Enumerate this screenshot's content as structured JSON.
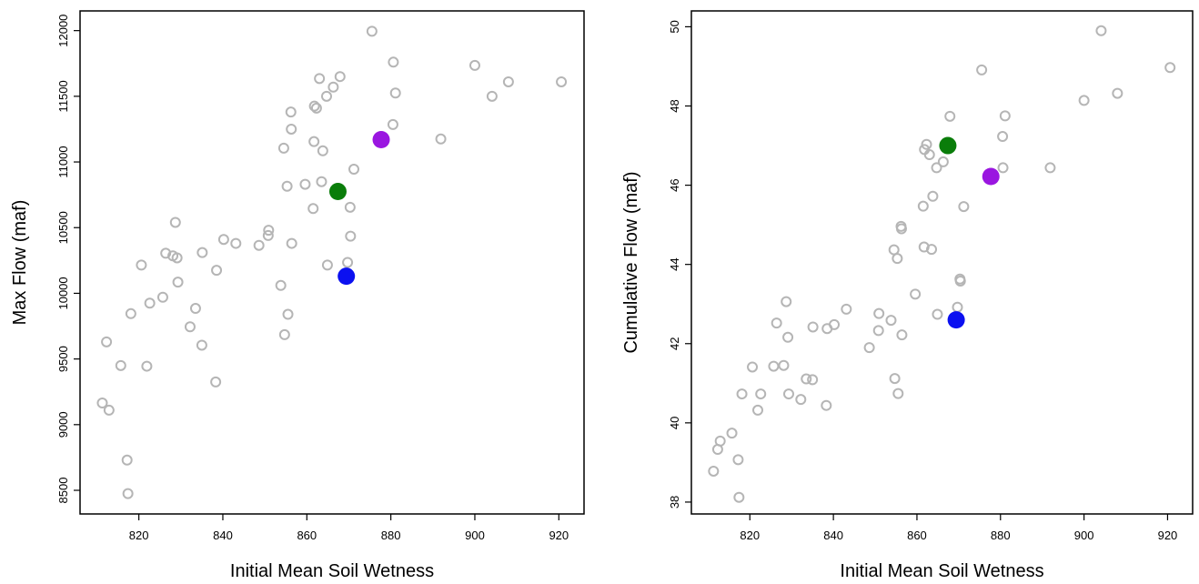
{
  "chart_data": [
    {
      "type": "scatter",
      "xlabel": "Initial Mean Soil Wetness",
      "ylabel": "Max Flow (maf)",
      "xlim": [
        806,
        926
      ],
      "ylim": [
        8320,
        12150
      ],
      "xticks": [
        820,
        840,
        860,
        880,
        900,
        920
      ],
      "yticks": [
        8500,
        9000,
        9500,
        10000,
        10500,
        11000,
        11500,
        12000
      ],
      "x_tick_labels": [
        "820",
        "840",
        "860",
        "880",
        "900",
        "920"
      ],
      "y_tick_labels": [
        "8500",
        "9000",
        "9500",
        "10000",
        "10500",
        "11000",
        "11500",
        "12000"
      ],
      "grid": false,
      "colors": {
        "open": "#b5b5b5",
        "green": "#0a7d0a",
        "purple": "#9a16e0",
        "blue": "#0b10f0"
      },
      "points": [
        [
          811.3,
          9165
        ],
        [
          812.3,
          9630
        ],
        [
          812.9,
          9110
        ],
        [
          815.7,
          9450
        ],
        [
          817.2,
          8730
        ],
        [
          817.4,
          8475
        ],
        [
          818.1,
          9845
        ],
        [
          820.6,
          10215
        ],
        [
          821.9,
          9445
        ],
        [
          822.6,
          9925
        ],
        [
          825.7,
          9970
        ],
        [
          826.4,
          10305
        ],
        [
          828.1,
          10285
        ],
        [
          828.7,
          10540
        ],
        [
          829.1,
          10270
        ],
        [
          829.3,
          10085
        ],
        [
          832.2,
          9745
        ],
        [
          833.5,
          9885
        ],
        [
          835.0,
          9605
        ],
        [
          835.1,
          10310
        ],
        [
          838.3,
          9325
        ],
        [
          838.5,
          10175
        ],
        [
          840.2,
          10410
        ],
        [
          843.1,
          10380
        ],
        [
          848.6,
          10365
        ],
        [
          850.8,
          10440
        ],
        [
          850.9,
          10480
        ],
        [
          853.8,
          10060
        ],
        [
          854.5,
          11105
        ],
        [
          854.7,
          9685
        ],
        [
          855.3,
          10815
        ],
        [
          855.5,
          9840
        ],
        [
          856.2,
          11380
        ],
        [
          856.3,
          11250
        ],
        [
          856.4,
          10380
        ],
        [
          859.6,
          10830
        ],
        [
          861.5,
          10645
        ],
        [
          861.7,
          11155
        ],
        [
          861.8,
          11425
        ],
        [
          862.3,
          11410
        ],
        [
          863.0,
          11635
        ],
        [
          863.5,
          10850
        ],
        [
          863.8,
          11085
        ],
        [
          864.7,
          11500
        ],
        [
          864.9,
          10215
        ],
        [
          866.3,
          11570
        ],
        [
          867.9,
          11650
        ],
        [
          869.7,
          10235
        ],
        [
          870.3,
          10655
        ],
        [
          870.4,
          10435
        ],
        [
          871.2,
          10945
        ],
        [
          875.5,
          11995
        ],
        [
          880.5,
          11285
        ],
        [
          880.6,
          11760
        ],
        [
          881.1,
          11525
        ],
        [
          891.9,
          11175
        ],
        [
          900.0,
          11735
        ],
        [
          904.1,
          11500
        ],
        [
          908.0,
          11610
        ],
        [
          920.6,
          11610
        ]
      ],
      "highlights": [
        {
          "x": 867.4,
          "y": 10775,
          "color": "green"
        },
        {
          "x": 877.7,
          "y": 11170,
          "color": "purple"
        },
        {
          "x": 869.4,
          "y": 10130,
          "color": "blue"
        }
      ]
    },
    {
      "type": "scatter",
      "xlabel": "Initial Mean Soil Wetness",
      "ylabel": "Cumulative Flow (maf)",
      "xlim": [
        806,
        926
      ],
      "ylim": [
        37.7,
        50.4
      ],
      "xticks": [
        820,
        840,
        860,
        880,
        900,
        920
      ],
      "yticks": [
        38,
        40,
        42,
        44,
        46,
        48,
        50
      ],
      "x_tick_labels": [
        "820",
        "840",
        "860",
        "880",
        "900",
        "920"
      ],
      "y_tick_labels": [
        "38",
        "40",
        "42",
        "44",
        "46",
        "48",
        "50"
      ],
      "grid": false,
      "colors": {
        "open": "#b5b5b5",
        "green": "#0a7d0a",
        "purple": "#9a16e0",
        "blue": "#0b10f0"
      },
      "points": [
        [
          811.3,
          38.78
        ],
        [
          812.3,
          39.33
        ],
        [
          812.9,
          39.54
        ],
        [
          815.7,
          39.74
        ],
        [
          817.2,
          39.07
        ],
        [
          817.4,
          38.12
        ],
        [
          818.1,
          40.73
        ],
        [
          820.6,
          41.41
        ],
        [
          821.9,
          40.32
        ],
        [
          822.6,
          40.73
        ],
        [
          825.7,
          41.43
        ],
        [
          826.4,
          42.52
        ],
        [
          828.1,
          41.45
        ],
        [
          828.7,
          43.06
        ],
        [
          829.1,
          42.16
        ],
        [
          829.3,
          40.73
        ],
        [
          832.2,
          40.59
        ],
        [
          833.5,
          41.11
        ],
        [
          835.0,
          41.09
        ],
        [
          835.1,
          42.42
        ],
        [
          838.3,
          40.44
        ],
        [
          838.5,
          42.38
        ],
        [
          840.2,
          42.48
        ],
        [
          843.1,
          42.87
        ],
        [
          848.6,
          41.9
        ],
        [
          850.8,
          42.33
        ],
        [
          850.9,
          42.76
        ],
        [
          853.8,
          42.59
        ],
        [
          854.5,
          44.37
        ],
        [
          854.7,
          41.12
        ],
        [
          855.3,
          44.15
        ],
        [
          855.5,
          40.74
        ],
        [
          856.2,
          44.96
        ],
        [
          856.3,
          44.9
        ],
        [
          856.4,
          42.22
        ],
        [
          859.6,
          43.25
        ],
        [
          861.5,
          45.47
        ],
        [
          861.7,
          44.44
        ],
        [
          861.8,
          46.9
        ],
        [
          862.3,
          47.03
        ],
        [
          863.0,
          46.77
        ],
        [
          863.5,
          44.38
        ],
        [
          863.8,
          45.72
        ],
        [
          864.7,
          46.44
        ],
        [
          864.9,
          42.74
        ],
        [
          866.3,
          46.59
        ],
        [
          867.9,
          47.74
        ],
        [
          869.7,
          42.92
        ],
        [
          870.3,
          43.63
        ],
        [
          870.4,
          43.58
        ],
        [
          871.2,
          45.46
        ],
        [
          875.5,
          48.91
        ],
        [
          880.5,
          47.23
        ],
        [
          880.6,
          46.44
        ],
        [
          881.1,
          47.75
        ],
        [
          891.9,
          46.44
        ],
        [
          900.0,
          48.14
        ],
        [
          904.1,
          49.9
        ],
        [
          908.0,
          48.32
        ],
        [
          920.6,
          48.97
        ]
      ],
      "highlights": [
        {
          "x": 867.4,
          "y": 47.0,
          "color": "green"
        },
        {
          "x": 877.7,
          "y": 46.22,
          "color": "purple"
        },
        {
          "x": 869.4,
          "y": 42.6,
          "color": "blue"
        }
      ]
    }
  ]
}
